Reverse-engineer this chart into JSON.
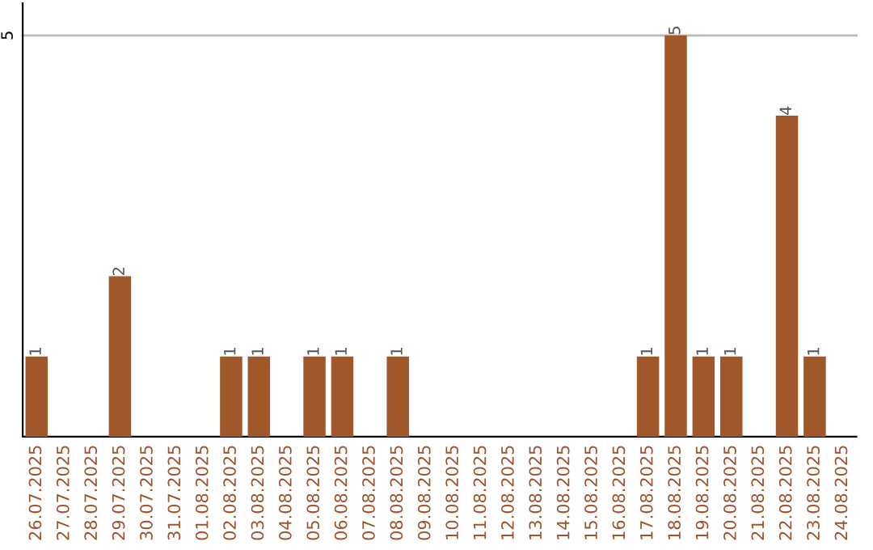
{
  "chart_data": {
    "type": "bar",
    "categories": [
      "26.07.2025",
      "27.07.2025",
      "28.07.2025",
      "29.07.2025",
      "30.07.2025",
      "31.07.2025",
      "01.08.2025",
      "02.08.2025",
      "03.08.2025",
      "04.08.2025",
      "05.08.2025",
      "06.08.2025",
      "07.08.2025",
      "08.08.2025",
      "09.08.2025",
      "10.08.2025",
      "11.08.2025",
      "12.08.2025",
      "13.08.2025",
      "14.08.2025",
      "15.08.2025",
      "16.08.2025",
      "17.08.2025",
      "18.08.2025",
      "19.08.2025",
      "20.08.2025",
      "21.08.2025",
      "22.08.2025",
      "23.08.2025",
      "24.08.2025"
    ],
    "values": [
      1,
      0,
      0,
      2,
      0,
      0,
      0,
      1,
      1,
      0,
      1,
      1,
      0,
      1,
      0,
      0,
      0,
      0,
      0,
      0,
      0,
      0,
      1,
      5,
      1,
      1,
      0,
      4,
      1,
      0
    ],
    "value_labels": [
      "1",
      null,
      null,
      "2",
      null,
      null,
      null,
      "1",
      "1",
      null,
      "1",
      "1",
      null,
      "1",
      null,
      null,
      null,
      null,
      null,
      null,
      null,
      null,
      "1",
      "5",
      "1",
      "1",
      null,
      "4",
      "1",
      null
    ],
    "color": "#a0572a",
    "ylim": [
      0,
      5.4
    ],
    "yticks": [
      5
    ],
    "grid": "y",
    "legend": false
  }
}
